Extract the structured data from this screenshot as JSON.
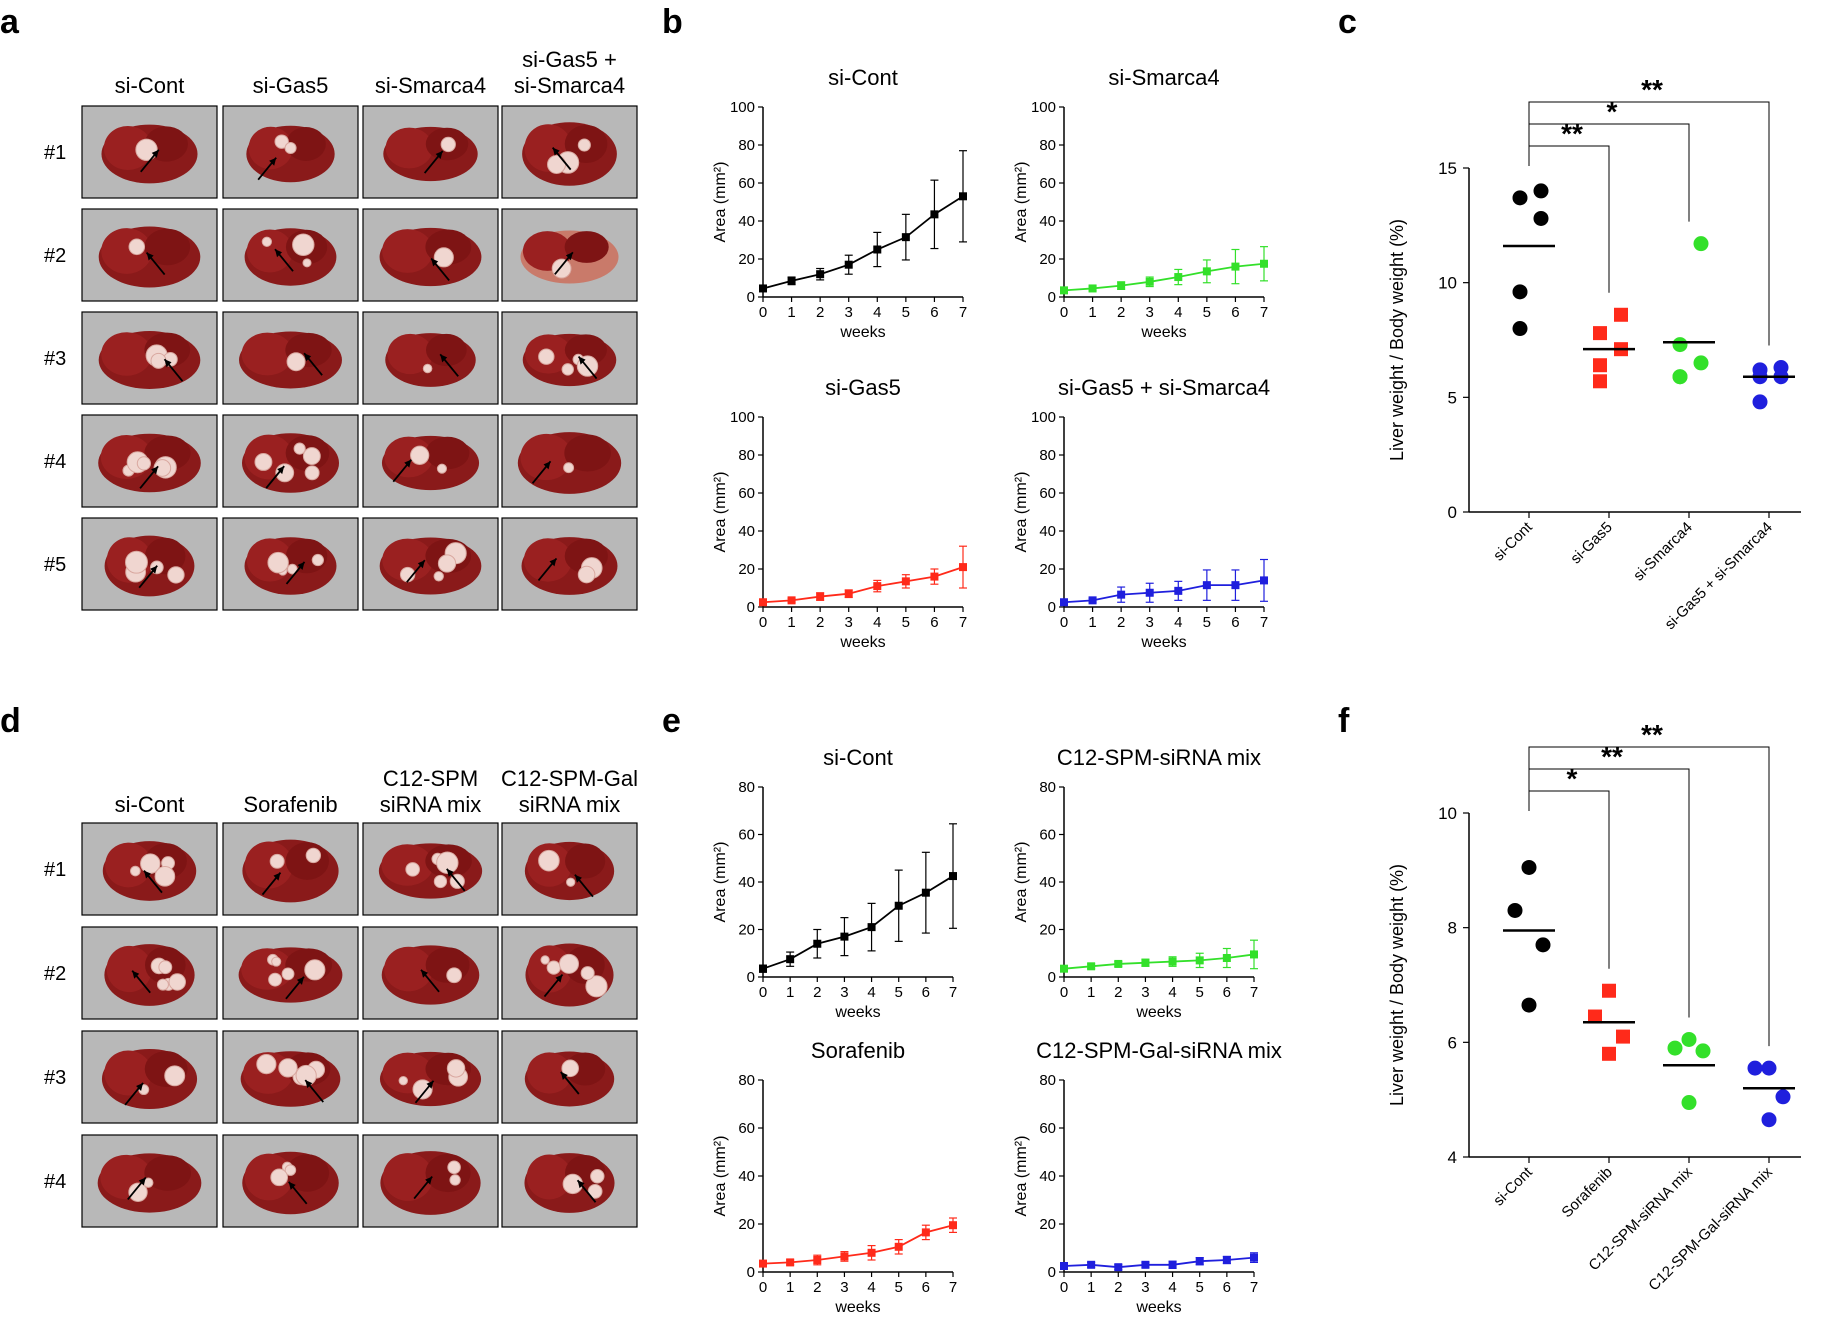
{
  "panel_labels": {
    "a": "a",
    "b": "b",
    "c": "c",
    "d": "d",
    "e": "e",
    "f": "f"
  },
  "panel_a": {
    "columns": [
      "si-Cont",
      "si-Gas5",
      "si-Smarca4",
      "si-Gas5 +|si-Smarca4"
    ],
    "rows": [
      "#1",
      "#2",
      "#3",
      "#4",
      "#5"
    ]
  },
  "panel_d": {
    "columns": [
      "si-Cont",
      "Sorafenib",
      "C12-SPM|siRNA mix",
      "C12-SPM-Gal|siRNA mix"
    ],
    "rows": [
      "#1",
      "#2",
      "#3",
      "#4"
    ]
  },
  "colors": {
    "black": "#000000",
    "red": "#ff2a1a",
    "green": "#33e02a",
    "blue": "#1f1fdd",
    "photo_bg": "#b8b8b8",
    "liver": "#8a1a1a"
  },
  "chart_data": [
    {
      "id": "b1",
      "type": "line",
      "title": "si-Cont",
      "xlabel": "weeks",
      "ylabel": "Area (mm²)",
      "ylim": [
        0,
        100
      ],
      "yticks": [
        0,
        20,
        40,
        60,
        80,
        100
      ],
      "x": [
        0,
        1,
        2,
        3,
        4,
        5,
        6,
        7
      ],
      "color": "black",
      "values": [
        4.5,
        8.5,
        12,
        17,
        25,
        31.5,
        43.5,
        53
      ],
      "errors": [
        1.5,
        2,
        3,
        5,
        9,
        12,
        18,
        24
      ]
    },
    {
      "id": "b2",
      "type": "line",
      "title": "si-Smarca4",
      "xlabel": "weeks",
      "ylabel": "Area (mm²)",
      "ylim": [
        0,
        100
      ],
      "yticks": [
        0,
        20,
        40,
        60,
        80,
        100
      ],
      "x": [
        0,
        1,
        2,
        3,
        4,
        5,
        6,
        7
      ],
      "color": "green",
      "values": [
        3.5,
        4.5,
        6,
        8,
        10.5,
        13.5,
        16,
        17.5
      ],
      "errors": [
        1,
        1.2,
        2,
        2.5,
        4,
        6,
        9,
        9
      ]
    },
    {
      "id": "b3",
      "type": "line",
      "title": "si-Gas5",
      "xlabel": "weeks",
      "ylabel": "Area (mm²)",
      "ylim": [
        0,
        100
      ],
      "yticks": [
        0,
        20,
        40,
        60,
        80,
        100
      ],
      "x": [
        0,
        1,
        2,
        3,
        4,
        5,
        6,
        7
      ],
      "color": "red",
      "values": [
        2.5,
        3.5,
        5.5,
        7,
        11,
        13.5,
        16,
        21
      ],
      "errors": [
        1,
        1,
        2,
        2,
        3,
        3.5,
        4,
        11
      ]
    },
    {
      "id": "b4",
      "type": "line",
      "title": "si-Gas5 + si-Smarca4",
      "xlabel": "weeks",
      "ylabel": "Area (mm²)",
      "ylim": [
        0,
        100
      ],
      "yticks": [
        0,
        20,
        40,
        60,
        80,
        100
      ],
      "x": [
        0,
        1,
        2,
        3,
        4,
        5,
        6,
        7
      ],
      "color": "blue",
      "values": [
        2.5,
        3.5,
        6.5,
        7.5,
        8.5,
        11.5,
        11.5,
        14
      ],
      "errors": [
        1,
        1,
        4,
        5,
        5,
        8,
        8,
        11
      ]
    },
    {
      "id": "e1",
      "type": "line",
      "title": "si-Cont",
      "xlabel": "weeks",
      "ylabel": "Area (mm²)",
      "ylim": [
        0,
        80
      ],
      "yticks": [
        0,
        20,
        40,
        60,
        80
      ],
      "x": [
        0,
        1,
        2,
        3,
        4,
        5,
        6,
        7
      ],
      "color": "black",
      "values": [
        3.5,
        7.5,
        14,
        17,
        21,
        30,
        35.5,
        42.5
      ],
      "errors": [
        1.5,
        3,
        6,
        8,
        10,
        15,
        17,
        22
      ]
    },
    {
      "id": "e2",
      "type": "line",
      "title": "C12-SPM-siRNA mix",
      "xlabel": "weeks",
      "ylabel": "Area (mm²)",
      "ylim": [
        0,
        80
      ],
      "yticks": [
        0,
        20,
        40,
        60,
        80
      ],
      "x": [
        0,
        1,
        2,
        3,
        4,
        5,
        6,
        7
      ],
      "color": "green",
      "values": [
        3.5,
        4.5,
        5.5,
        6,
        6.5,
        7,
        8,
        9.5
      ],
      "errors": [
        1,
        1,
        1,
        1.5,
        2,
        3,
        4,
        6
      ]
    },
    {
      "id": "e3",
      "type": "line",
      "title": "Sorafenib",
      "xlabel": "weeks",
      "ylabel": "Area (mm²)",
      "ylim": [
        0,
        80
      ],
      "yticks": [
        0,
        20,
        40,
        60,
        80
      ],
      "x": [
        0,
        1,
        2,
        3,
        4,
        5,
        6,
        7
      ],
      "color": "red",
      "values": [
        3.5,
        4,
        5,
        6.5,
        8,
        10.5,
        16.5,
        19.5
      ],
      "errors": [
        1,
        1,
        2,
        2,
        3,
        3,
        3,
        3
      ]
    },
    {
      "id": "e4",
      "type": "line",
      "title": "C12-SPM-Gal-siRNA mix",
      "xlabel": "weeks",
      "ylabel": "Area (mm²)",
      "ylim": [
        0,
        80
      ],
      "yticks": [
        0,
        20,
        40,
        60,
        80
      ],
      "x": [
        0,
        1,
        2,
        3,
        4,
        5,
        6,
        7
      ],
      "color": "blue",
      "values": [
        2.5,
        3,
        2,
        3,
        3,
        4.5,
        5,
        6
      ],
      "errors": [
        1,
        1,
        1,
        1,
        1.5,
        1.5,
        1.5,
        2
      ]
    },
    {
      "id": "c",
      "type": "scatter",
      "ylabel": "Liver weight / Body weight (%)",
      "ylim": [
        0,
        15
      ],
      "yticks": [
        0,
        5,
        10,
        15
      ],
      "categories": [
        "si-Cont",
        "si-Gas5",
        "si-Smarca4",
        "si-Gas5 + si-Smarca4"
      ],
      "colors": [
        "black",
        "red",
        "green",
        "blue"
      ],
      "markers": [
        "circle",
        "square",
        "circle",
        "circle"
      ],
      "points": [
        [
          14,
          13.7,
          12.8,
          9.6,
          8.0
        ],
        [
          8.6,
          7.8,
          7.1,
          6.4,
          5.7
        ],
        [
          11.7,
          7.3,
          6.5,
          5.9,
          5.9
        ],
        [
          6.3,
          6.2,
          5.9,
          5.9,
          4.8
        ]
      ],
      "means": [
        11.6,
        7.1,
        7.4,
        5.9
      ],
      "significance": [
        {
          "from": 0,
          "to": 1,
          "label": "**"
        },
        {
          "from": 0,
          "to": 2,
          "label": "*"
        },
        {
          "from": 0,
          "to": 3,
          "label": "**"
        }
      ]
    },
    {
      "id": "f",
      "type": "scatter",
      "ylabel": "Liver weight / Body weight (%)",
      "ylim": [
        4,
        10
      ],
      "yticks": [
        4,
        6,
        8,
        10
      ],
      "categories": [
        "si-Cont",
        "Sorafenib",
        "C12-SPM-siRNA mix",
        "C12-SPM-Gal-siRNA mix"
      ],
      "colors": [
        "black",
        "red",
        "green",
        "blue"
      ],
      "markers": [
        "circle",
        "square",
        "circle",
        "circle"
      ],
      "points": [
        [
          9.05,
          8.3,
          7.7,
          6.65
        ],
        [
          6.9,
          6.45,
          6.1,
          5.8
        ],
        [
          6.05,
          5.9,
          5.85,
          4.95
        ],
        [
          5.55,
          5.55,
          5.05,
          4.65
        ]
      ],
      "means": [
        7.95,
        6.35,
        5.6,
        5.2
      ],
      "significance": [
        {
          "from": 0,
          "to": 1,
          "label": "*"
        },
        {
          "from": 0,
          "to": 2,
          "label": "**"
        },
        {
          "from": 0,
          "to": 3,
          "label": "**"
        }
      ]
    }
  ]
}
